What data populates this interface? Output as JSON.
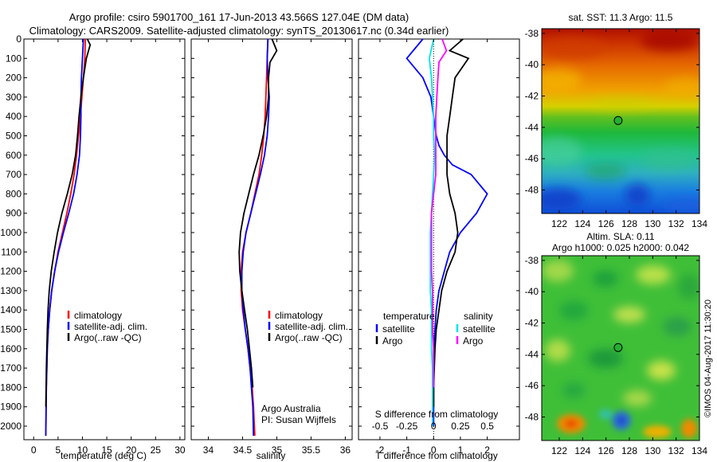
{
  "header": {
    "line1": "Argo profile: csiro 5901700_161 17-Jun-2013 43.566S 127.04E (DM data)",
    "line2": "Climatology: CARS2009. Satellite-adjusted climatology: synTS_20130617.nc (0.34d earlier)"
  },
  "side_stamp": "©IMOS 04-Aug-2017 11:30:20",
  "credit": {
    "line1": "Argo Australia",
    "line2": "PI: Susan Wijffels"
  },
  "colors": {
    "climatology": "#ff0000",
    "satellite": "#0000ff",
    "argo": "#000000",
    "s_satellite": "#00e5e5",
    "s_argo": "#ff00ff"
  },
  "chart_data": [
    {
      "type": "line",
      "xlabel": "temperature (deg C)",
      "ylabel": "",
      "xlim": [
        -2,
        31
      ],
      "ylim": [
        2070,
        0
      ],
      "y_reversed": true,
      "xticks": [
        0,
        5,
        10,
        15,
        20,
        25,
        30
      ],
      "yticks": [
        0,
        100,
        200,
        300,
        400,
        500,
        600,
        700,
        800,
        900,
        1000,
        1100,
        1200,
        1300,
        1400,
        1500,
        1600,
        1700,
        1800,
        1900,
        2000
      ],
      "legend": {
        "placement": "lower-center",
        "labels": [
          "climatology",
          "satellite-adj. clim.",
          "Argo(..raw -QC)"
        ]
      },
      "series": [
        {
          "name": "climatology",
          "color": "#ff0000",
          "x": [
            10.6,
            10.5,
            10.2,
            9.9,
            9.6,
            9.2,
            8.8,
            8.3,
            7.6,
            6.8,
            5.9,
            5.0,
            4.3,
            3.7,
            3.3,
            3.0,
            2.8,
            2.7,
            2.6,
            2.55,
            2.5
          ],
          "y": [
            0,
            100,
            200,
            300,
            400,
            500,
            600,
            700,
            800,
            900,
            1000,
            1100,
            1200,
            1300,
            1400,
            1500,
            1600,
            1700,
            1800,
            1900,
            2050
          ]
        },
        {
          "name": "satellite-adj. clim.",
          "color": "#0000ff",
          "x": [
            10.2,
            10.0,
            9.8,
            9.7,
            9.7,
            9.6,
            9.4,
            8.9,
            8.2,
            7.2,
            6.1,
            5.1,
            4.3,
            3.7,
            3.3,
            3.0,
            2.8,
            2.7,
            2.6,
            2.55,
            2.5
          ],
          "y": [
            0,
            100,
            200,
            300,
            400,
            500,
            600,
            700,
            800,
            900,
            1000,
            1100,
            1200,
            1300,
            1400,
            1500,
            1600,
            1700,
            1800,
            1900,
            2050
          ]
        },
        {
          "name": "Argo(..raw -QC)",
          "color": "#000000",
          "x": [
            11.0,
            11.6,
            10.8,
            10.2,
            9.7,
            9.3,
            9.0,
            8.6,
            7.9,
            6.9,
            5.8,
            4.9,
            4.2,
            3.6,
            3.2,
            2.95,
            2.8,
            2.7,
            2.6,
            2.55,
            2.5
          ],
          "y": [
            0,
            30,
            100,
            200,
            300,
            400,
            500,
            600,
            700,
            800,
            900,
            1000,
            1100,
            1200,
            1300,
            1400,
            1500,
            1600,
            1700,
            1800,
            1900
          ]
        }
      ]
    },
    {
      "type": "line",
      "xlabel": "salinity",
      "ylabel": "",
      "xlim": [
        33.75,
        36.1
      ],
      "ylim": [
        2070,
        0
      ],
      "y_reversed": true,
      "xticks": [
        34,
        34.5,
        35,
        35.5,
        36
      ],
      "legend": {
        "placement": "lower-center",
        "labels": [
          "climatology",
          "satellite-adj. clim.",
          "Argo(..raw -QC)"
        ]
      },
      "series": [
        {
          "name": "climatology",
          "color": "#ff0000",
          "x": [
            34.87,
            34.86,
            34.85,
            34.84,
            34.83,
            34.81,
            34.78,
            34.74,
            34.68,
            34.62,
            34.55,
            34.5,
            34.48,
            34.48,
            34.5,
            34.54,
            34.58,
            34.61,
            34.64,
            34.66,
            34.68
          ],
          "y": [
            0,
            100,
            200,
            300,
            400,
            500,
            600,
            700,
            800,
            900,
            1000,
            1100,
            1200,
            1300,
            1400,
            1500,
            1600,
            1700,
            1800,
            1900,
            2050
          ]
        },
        {
          "name": "satellite-adj. clim.",
          "color": "#0000ff",
          "x": [
            34.87,
            34.86,
            34.87,
            34.89,
            34.88,
            34.86,
            34.82,
            34.76,
            34.69,
            34.62,
            34.55,
            34.51,
            34.49,
            34.49,
            34.51,
            34.54,
            34.58,
            34.61,
            34.63,
            34.65,
            34.66
          ],
          "y": [
            0,
            100,
            200,
            300,
            400,
            500,
            600,
            700,
            800,
            900,
            1000,
            1100,
            1200,
            1300,
            1400,
            1500,
            1600,
            1700,
            1800,
            1900,
            2050
          ]
        },
        {
          "name": "Argo(..raw -QC)",
          "color": "#000000",
          "x": [
            34.93,
            35.0,
            34.9,
            34.88,
            34.88,
            34.85,
            34.8,
            34.74,
            34.66,
            34.59,
            34.52,
            34.47,
            34.45,
            34.46,
            34.49,
            34.53,
            34.57,
            34.6,
            34.63,
            34.65
          ],
          "y": [
            0,
            60,
            120,
            200,
            300,
            400,
            500,
            600,
            700,
            800,
            900,
            1000,
            1100,
            1200,
            1300,
            1400,
            1500,
            1600,
            1700,
            1800
          ]
        }
      ]
    },
    {
      "type": "line",
      "xlabel": "T difference from climatology",
      "x2label": "S difference from climatology",
      "xlim": [
        -2.8,
        3.2
      ],
      "ylim": [
        2070,
        0
      ],
      "y_reversed": true,
      "xticks": [
        -2,
        -1,
        0,
        1,
        2
      ],
      "x2ticks": [
        -0.5,
        -0.25,
        0,
        0.25,
        0.5
      ],
      "x2lim": [
        -0.7,
        0.8
      ],
      "legend": {
        "placement": "lower-center",
        "headings": [
          "temperature",
          "salinity"
        ],
        "labels": [
          "satellite",
          "Argo",
          "satellite",
          "Argo"
        ]
      },
      "series": [
        {
          "name": "satellite",
          "group": "temperature",
          "color": "#0000ff",
          "x": [
            -0.4,
            -1.0,
            -0.4,
            -0.1,
            0.0,
            0.1,
            0.2,
            0.4,
            0.7,
            1.4,
            2.0,
            1.6,
            1.0,
            0.6,
            0.4,
            0.2,
            0.1,
            0.05,
            0.0,
            0.0,
            0.0
          ],
          "y": [
            0,
            100,
            200,
            300,
            400,
            500,
            550,
            600,
            650,
            700,
            800,
            900,
            1000,
            1100,
            1200,
            1300,
            1400,
            1500,
            1600,
            1800,
            2000
          ]
        },
        {
          "name": "Argo",
          "group": "temperature",
          "color": "#000000",
          "x": [
            1.1,
            0.6,
            1.3,
            0.8,
            0.7,
            0.6,
            0.5,
            0.5,
            0.5,
            0.6,
            0.8,
            0.9,
            0.8,
            0.5,
            0.3,
            0.2,
            0.1,
            0.05,
            0.0,
            0.0
          ],
          "y": [
            0,
            60,
            100,
            200,
            300,
            400,
            500,
            600,
            700,
            800,
            900,
            1000,
            1100,
            1200,
            1300,
            1400,
            1500,
            1600,
            1800,
            1900
          ]
        },
        {
          "name": "satellite",
          "group": "salinity",
          "color": "#00e5e5",
          "x": [
            0.0,
            -0.04,
            -0.02,
            -0.01,
            0.0,
            0.0,
            0.01,
            0.0,
            -0.01,
            -0.02,
            -0.03,
            -0.03,
            -0.03,
            -0.03,
            -0.02,
            -0.02,
            -0.02,
            -0.01,
            -0.01,
            -0.01,
            -0.01
          ],
          "y": [
            0,
            100,
            200,
            300,
            400,
            500,
            600,
            700,
            800,
            900,
            1000,
            1100,
            1200,
            1300,
            1400,
            1500,
            1600,
            1700,
            1800,
            1900,
            2000
          ]
        },
        {
          "name": "Argo",
          "group": "salinity",
          "color": "#ff00ff",
          "x": [
            0.08,
            0.12,
            0.05,
            0.04,
            0.03,
            0.02,
            0.02,
            0.02,
            0.02,
            0.0,
            -0.02,
            -0.02,
            -0.02,
            -0.02,
            -0.01,
            -0.01,
            -0.01,
            0.0,
            0.0,
            0.0
          ],
          "y": [
            0,
            60,
            120,
            200,
            300,
            400,
            500,
            600,
            700,
            800,
            900,
            1000,
            1100,
            1200,
            1300,
            1400,
            1500,
            1600,
            1700,
            1800
          ]
        }
      ]
    },
    {
      "type": "heatmap",
      "title": "sat. SST: 11.3  Argo: 11.5",
      "xlim": [
        120.5,
        134
      ],
      "ylim": [
        -49.5,
        -37.7
      ],
      "xticks": [
        122,
        124,
        126,
        128,
        130,
        132,
        134
      ],
      "yticks": [
        -38,
        -40,
        -42,
        -44,
        -46,
        -48
      ],
      "marker": {
        "lon": 127.04,
        "lat": -43.566
      }
    },
    {
      "type": "heatmap",
      "title": "Altim. SLA: 0.11",
      "subtitle": "Argo h1000: 0.025 h2000: 0.042",
      "xlim": [
        120.5,
        134
      ],
      "ylim": [
        -49.5,
        -37.7
      ],
      "xticks": [
        122,
        124,
        126,
        128,
        130,
        132,
        134
      ],
      "yticks": [
        -38,
        -40,
        -42,
        -44,
        -46,
        -48
      ],
      "marker": {
        "lon": 127.04,
        "lat": -43.566
      }
    }
  ]
}
